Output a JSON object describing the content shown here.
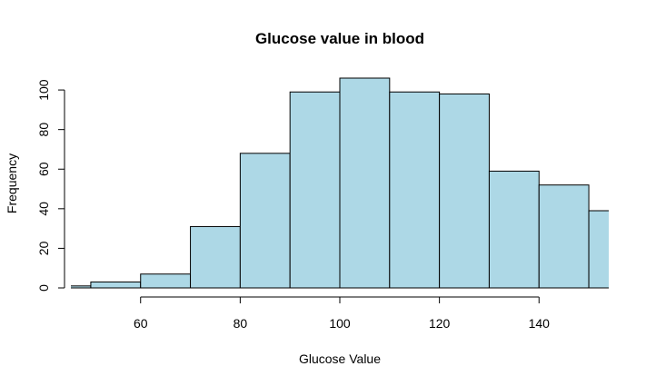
{
  "chart_data": {
    "type": "bar",
    "title": "Glucose value in blood",
    "xlabel": "Glucose Value",
    "ylabel": "Frequency",
    "bin_edges": [
      40,
      50,
      60,
      70,
      80,
      90,
      100,
      110,
      120,
      130,
      140,
      150,
      160
    ],
    "values": [
      1,
      3,
      7,
      31,
      68,
      99,
      106,
      99,
      98,
      59,
      52,
      39
    ],
    "x_ticks": [
      "60",
      "80",
      "100",
      "120",
      "140"
    ],
    "y_ticks": [
      "0",
      "20",
      "40",
      "60",
      "80",
      "100"
    ],
    "xlim": [
      46,
      154
    ],
    "ylim": [
      0,
      106
    ],
    "bar_fill": "#ADD8E6",
    "bar_stroke": "#000000",
    "grid": false,
    "legend": "none"
  }
}
